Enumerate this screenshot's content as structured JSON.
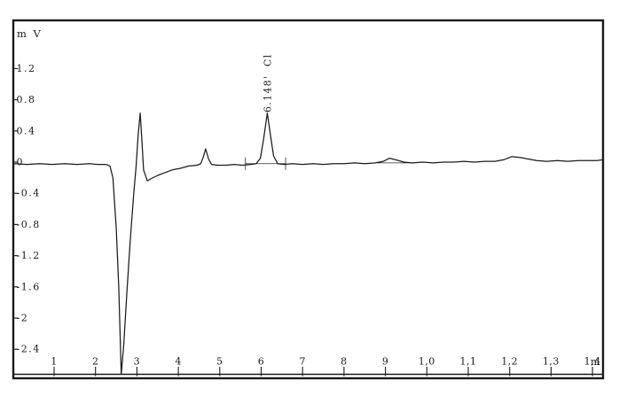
{
  "page": {
    "background": "#ffffff"
  },
  "chart_data": {
    "type": "line",
    "title": "",
    "ylabel": "m V",
    "x_unit": "m",
    "grid": false,
    "legend": "none",
    "xlim": [
      0.03,
      14.27
    ],
    "ylim": [
      -2.72,
      1.45
    ],
    "x_ticks": [
      {
        "value": 1,
        "label": "1"
      },
      {
        "value": 2,
        "label": "2"
      },
      {
        "value": 3,
        "label": "3"
      },
      {
        "value": 4,
        "label": "4"
      },
      {
        "value": 5,
        "label": "5"
      },
      {
        "value": 6,
        "label": "6"
      },
      {
        "value": 7,
        "label": "7"
      },
      {
        "value": 8,
        "label": "8"
      },
      {
        "value": 9,
        "label": "9"
      },
      {
        "value": 10,
        "label": "1,0"
      },
      {
        "value": 11,
        "label": "1,1"
      },
      {
        "value": 12,
        "label": "1,2"
      },
      {
        "value": 13,
        "label": "1,3"
      },
      {
        "value": 14,
        "label": "1,4"
      }
    ],
    "y_ticks": [
      {
        "value": 1.2,
        "label": "1.2"
      },
      {
        "value": 0.8,
        "label": "0.8"
      },
      {
        "value": 0.4,
        "label": "0.4"
      },
      {
        "value": 0,
        "label": "0"
      },
      {
        "value": -0.4,
        "label": "-0.4"
      },
      {
        "value": -0.8,
        "label": "-0.8"
      },
      {
        "value": -1.2,
        "label": "-1.2"
      },
      {
        "value": -1.6,
        "label": "-1.6"
      },
      {
        "value": -2,
        "label": "-2"
      },
      {
        "value": -2.4,
        "label": "-2.4"
      }
    ],
    "peaks": [
      {
        "retention_time": 6.148,
        "analyte": "Cl",
        "display": "6.148'  Cl",
        "apex_mV": 0.63
      }
    ],
    "integration": {
      "dropline_times": [
        5.62,
        6.59
      ],
      "dropline_half_height_mV": 0.08,
      "baselines": [
        [
          [
            5.62,
            -0.02
          ],
          [
            6.59,
            -0.02
          ]
        ],
        [
          [
            8.8,
            -0.01
          ],
          [
            9.6,
            -0.01
          ]
        ]
      ]
    },
    "series": [
      {
        "name": "conductivity-trace",
        "color": "#1b1b1b",
        "points": [
          [
            0.05,
            -0.02
          ],
          [
            0.35,
            -0.03
          ],
          [
            0.65,
            -0.02
          ],
          [
            0.95,
            -0.03
          ],
          [
            1.25,
            -0.02
          ],
          [
            1.55,
            -0.03
          ],
          [
            1.85,
            -0.02
          ],
          [
            2.05,
            -0.03
          ],
          [
            2.25,
            -0.03
          ],
          [
            2.35,
            -0.05
          ],
          [
            2.42,
            -0.2
          ],
          [
            2.5,
            -0.85
          ],
          [
            2.56,
            -1.6
          ],
          [
            2.62,
            -2.72
          ],
          [
            2.68,
            -2.35
          ],
          [
            2.76,
            -1.65
          ],
          [
            2.84,
            -1.0
          ],
          [
            2.92,
            -0.42
          ],
          [
            2.98,
            -0.05
          ],
          [
            3.03,
            0.35
          ],
          [
            3.08,
            0.63
          ],
          [
            3.12,
            0.28
          ],
          [
            3.16,
            -0.1
          ],
          [
            3.25,
            -0.24
          ],
          [
            3.35,
            -0.21
          ],
          [
            3.5,
            -0.17
          ],
          [
            3.65,
            -0.14
          ],
          [
            3.85,
            -0.1
          ],
          [
            4.05,
            -0.08
          ],
          [
            4.25,
            -0.05
          ],
          [
            4.45,
            -0.04
          ],
          [
            4.54,
            -0.02
          ],
          [
            4.6,
            0.06
          ],
          [
            4.66,
            0.17
          ],
          [
            4.73,
            0.04
          ],
          [
            4.8,
            -0.03
          ],
          [
            4.95,
            -0.04
          ],
          [
            5.15,
            -0.04
          ],
          [
            5.35,
            -0.03
          ],
          [
            5.55,
            -0.04
          ],
          [
            5.75,
            -0.03
          ],
          [
            5.88,
            -0.02
          ],
          [
            5.98,
            0.05
          ],
          [
            6.06,
            0.3
          ],
          [
            6.148,
            0.63
          ],
          [
            6.23,
            0.33
          ],
          [
            6.3,
            0.08
          ],
          [
            6.4,
            -0.02
          ],
          [
            6.55,
            -0.03
          ],
          [
            6.75,
            -0.02
          ],
          [
            7.0,
            -0.03
          ],
          [
            7.25,
            -0.02
          ],
          [
            7.5,
            -0.03
          ],
          [
            7.75,
            -0.02
          ],
          [
            8.0,
            -0.02
          ],
          [
            8.25,
            -0.01
          ],
          [
            8.5,
            -0.02
          ],
          [
            8.75,
            -0.01
          ],
          [
            8.95,
            0.01
          ],
          [
            9.1,
            0.05
          ],
          [
            9.25,
            0.03
          ],
          [
            9.45,
            0.0
          ],
          [
            9.65,
            -0.01
          ],
          [
            9.9,
            0.0
          ],
          [
            10.15,
            -0.01
          ],
          [
            10.4,
            0.0
          ],
          [
            10.65,
            0.0
          ],
          [
            10.9,
            0.01
          ],
          [
            11.15,
            0.0
          ],
          [
            11.4,
            0.01
          ],
          [
            11.65,
            0.01
          ],
          [
            11.85,
            0.03
          ],
          [
            12.05,
            0.07
          ],
          [
            12.25,
            0.06
          ],
          [
            12.45,
            0.04
          ],
          [
            12.65,
            0.02
          ],
          [
            12.9,
            0.01
          ],
          [
            13.15,
            0.02
          ],
          [
            13.4,
            0.01
          ],
          [
            13.65,
            0.02
          ],
          [
            13.9,
            0.02
          ],
          [
            14.1,
            0.02
          ],
          [
            14.24,
            0.03
          ]
        ]
      }
    ],
    "colors": {
      "trace": "#1b1b1b",
      "frame": "#1a1a1a",
      "text": "#1a1a1a"
    }
  }
}
